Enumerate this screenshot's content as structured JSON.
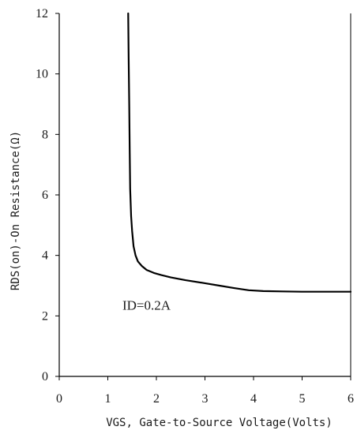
{
  "chart_data": {
    "type": "line",
    "xlabel": "VGS, Gate-to-Source Voltage(Volts)",
    "ylabel": "RDS(on)-On Resistance(Ω)",
    "xlim": [
      0,
      6
    ],
    "ylim": [
      0,
      12
    ],
    "xticks": [
      0,
      1,
      2,
      3,
      4,
      5,
      6
    ],
    "yticks": [
      0,
      2,
      4,
      6,
      8,
      10,
      12
    ],
    "grid": false,
    "annotations": [
      {
        "text": "ID=0.2A",
        "x": 1.3,
        "y": 2.2
      }
    ],
    "series": [
      {
        "color": "#000000",
        "x": [
          1.42,
          1.43,
          1.44,
          1.45,
          1.46,
          1.48,
          1.5,
          1.53,
          1.57,
          1.62,
          1.7,
          1.8,
          1.95,
          2.1,
          2.3,
          2.6,
          3.0,
          3.3,
          3.6,
          3.9,
          4.2,
          4.6,
          5.0,
          5.5,
          6.0
        ],
        "y": [
          12.0,
          10.5,
          9.0,
          7.5,
          6.2,
          5.3,
          4.8,
          4.3,
          4.0,
          3.8,
          3.65,
          3.52,
          3.42,
          3.35,
          3.27,
          3.18,
          3.08,
          3.0,
          2.92,
          2.85,
          2.82,
          2.81,
          2.8,
          2.8,
          2.8
        ]
      }
    ]
  }
}
